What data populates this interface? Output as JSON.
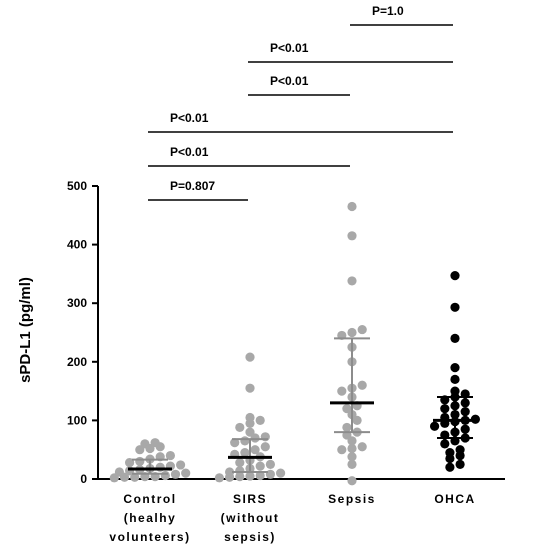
{
  "chart_data": {
    "type": "scatter",
    "ylabel": "sPD-L1 (pg/ml)",
    "ylim": [
      0,
      500
    ],
    "yticks": [
      0,
      100,
      200,
      300,
      400,
      500
    ],
    "grid": false,
    "groups": [
      {
        "label_lines": [
          "Control",
          "(healhy",
          "volunteers)"
        ],
        "color": "#a8a8a8",
        "median": 17,
        "iqr": [
          9,
          33
        ],
        "points": [
          2,
          3,
          3,
          4,
          4,
          6,
          8,
          10,
          12,
          14,
          16,
          18,
          20,
          22,
          24,
          28,
          30,
          34,
          38,
          40,
          50,
          52,
          55,
          60,
          62
        ]
      },
      {
        "label_lines": [
          "SIRS",
          "(without",
          "sepsis)"
        ],
        "color": "#a8a8a8",
        "median": 37,
        "iqr": [
          12,
          68
        ],
        "points": [
          2,
          3,
          4,
          5,
          6,
          8,
          10,
          12,
          14,
          18,
          22,
          25,
          28,
          32,
          38,
          42,
          45,
          50,
          55,
          62,
          65,
          70,
          72,
          80,
          88,
          95,
          100,
          105,
          155,
          208
        ]
      },
      {
        "label_lines": [
          "Sepsis"
        ],
        "color": "#a8a8a8",
        "median": 130,
        "iqr": [
          80,
          240
        ],
        "points": [
          -3,
          25,
          38,
          50,
          52,
          55,
          65,
          75,
          80,
          88,
          100,
          110,
          120,
          125,
          140,
          150,
          155,
          160,
          200,
          225,
          245,
          250,
          255,
          338,
          415,
          465
        ]
      },
      {
        "label_lines": [
          "OHCA"
        ],
        "color": "#000000",
        "median": 100,
        "iqr": [
          70,
          140
        ],
        "points": [
          20,
          25,
          35,
          40,
          45,
          50,
          60,
          65,
          70,
          75,
          80,
          85,
          90,
          95,
          98,
          100,
          102,
          105,
          110,
          115,
          120,
          125,
          130,
          135,
          140,
          145,
          150,
          170,
          190,
          240,
          293,
          347
        ]
      }
    ],
    "comparisons": [
      {
        "from": 2,
        "to": 3,
        "label": "P=1.0"
      },
      {
        "from": 1,
        "to": 3,
        "label": "P<0.01"
      },
      {
        "from": 1,
        "to": 2,
        "label": "P<0.01"
      },
      {
        "from": 0,
        "to": 3,
        "label": "P<0.01"
      },
      {
        "from": 0,
        "to": 2,
        "label": "P<0.01"
      },
      {
        "from": 0,
        "to": 1,
        "label": "P=0.807"
      }
    ]
  }
}
